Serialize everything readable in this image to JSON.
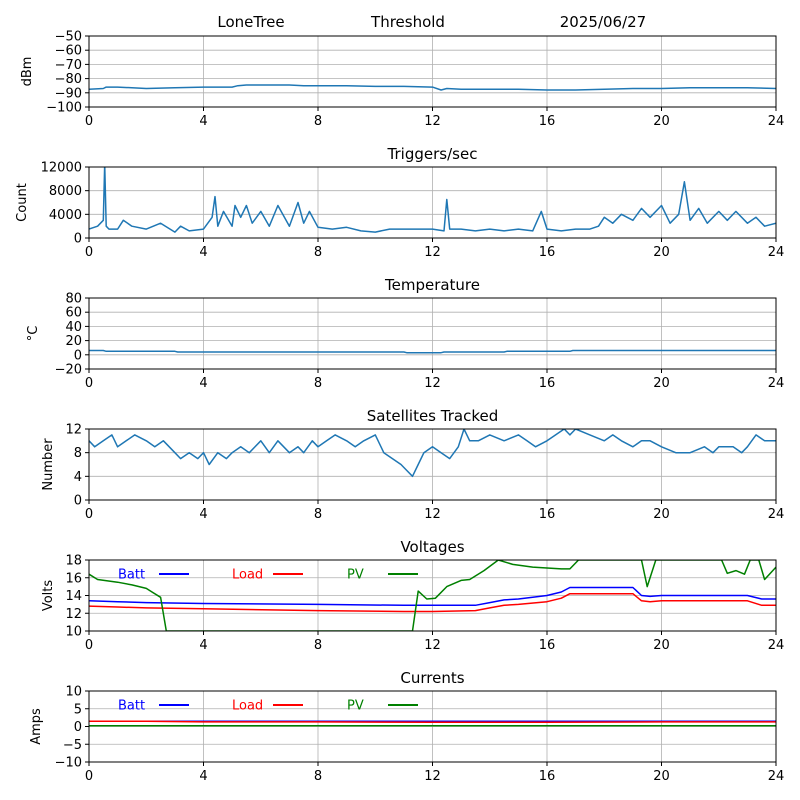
{
  "header": {
    "station": "LoneTree",
    "mode": "Threshold",
    "date": "2025/06/27"
  },
  "chart_data": [
    {
      "id": "signal",
      "type": "line",
      "title": "",
      "xlabel": "",
      "ylabel": "dBm",
      "xlim": [
        0,
        24
      ],
      "ylim": [
        -100,
        -50
      ],
      "xticks": [
        0,
        4,
        8,
        12,
        16,
        20,
        24
      ],
      "yticks": [
        -100,
        -90,
        -80,
        -70,
        -60,
        -50
      ],
      "grid": true,
      "series": [
        {
          "color": "#1f77b4",
          "x": [
            0,
            0.5,
            0.6,
            1,
            2,
            3,
            4,
            5,
            5.2,
            5.5,
            6,
            7,
            7.5,
            8,
            9,
            10,
            11,
            12,
            12.3,
            12.5,
            13,
            14,
            15,
            16,
            17,
            18,
            19,
            20,
            21,
            22,
            23,
            24
          ],
          "y": [
            -87.5,
            -87,
            -86,
            -86,
            -87,
            -86.5,
            -86,
            -86,
            -85,
            -84.5,
            -84.5,
            -84.5,
            -85,
            -85,
            -85,
            -85.5,
            -85.5,
            -86,
            -88,
            -87,
            -87.5,
            -87.5,
            -87.5,
            -88,
            -88,
            -87.5,
            -87,
            -87,
            -86.5,
            -86.5,
            -86.5,
            -87
          ]
        }
      ]
    },
    {
      "id": "triggers",
      "type": "line",
      "title": "Triggers/sec",
      "xlabel": "",
      "ylabel": "Count",
      "xlim": [
        0,
        24
      ],
      "ylim": [
        0,
        12000
      ],
      "xticks": [
        0,
        4,
        8,
        12,
        16,
        20,
        24
      ],
      "yticks": [
        0,
        4000,
        8000,
        12000
      ],
      "grid": true,
      "series": [
        {
          "color": "#1f77b4",
          "x": [
            0,
            0.3,
            0.5,
            0.55,
            0.6,
            0.7,
            1,
            1.2,
            1.5,
            2,
            2.5,
            3,
            3.2,
            3.5,
            4,
            4.3,
            4.4,
            4.5,
            4.7,
            5,
            5.1,
            5.3,
            5.5,
            5.7,
            6,
            6.3,
            6.6,
            7,
            7.3,
            7.5,
            7.7,
            8,
            8.5,
            9,
            9.5,
            10,
            10.5,
            11,
            11.5,
            12,
            12.4,
            12.5,
            12.6,
            13,
            13.5,
            14,
            14.5,
            15,
            15.5,
            15.8,
            16,
            16.5,
            17,
            17.5,
            17.8,
            18,
            18.3,
            18.6,
            19,
            19.3,
            19.6,
            20,
            20.3,
            20.6,
            20.8,
            21,
            21.3,
            21.6,
            22,
            22.3,
            22.6,
            23,
            23.3,
            23.6,
            24
          ],
          "y": [
            1500,
            2000,
            3000,
            12500,
            2000,
            1500,
            1500,
            3000,
            2000,
            1500,
            2500,
            1000,
            2000,
            1200,
            1500,
            3500,
            7000,
            2000,
            4500,
            2000,
            5500,
            3500,
            5500,
            2500,
            4500,
            2000,
            5500,
            2000,
            6000,
            2500,
            4500,
            1800,
            1500,
            1800,
            1200,
            1000,
            1500,
            1500,
            1500,
            1500,
            1200,
            6500,
            1500,
            1500,
            1200,
            1500,
            1200,
            1500,
            1200,
            4500,
            1500,
            1200,
            1500,
            1500,
            2000,
            3500,
            2500,
            4000,
            3000,
            5000,
            3500,
            5500,
            2500,
            4000,
            9500,
            3000,
            5000,
            2500,
            4500,
            3000,
            4500,
            2500,
            3500,
            2000,
            2500
          ]
        }
      ]
    },
    {
      "id": "temperature",
      "type": "line",
      "title": "Temperature",
      "xlabel": "",
      "ylabel": "°C",
      "xlim": [
        0,
        24
      ],
      "ylim": [
        -20,
        80
      ],
      "xticks": [
        0,
        4,
        8,
        12,
        16,
        20,
        24
      ],
      "yticks": [
        -20,
        0,
        20,
        40,
        60,
        80
      ],
      "grid": true,
      "series": [
        {
          "color": "#1f77b4",
          "x": [
            0,
            0.5,
            0.6,
            3,
            3.1,
            11,
            11.1,
            12.3,
            12.4,
            14.5,
            14.6,
            16.8,
            16.9,
            24
          ],
          "y": [
            6,
            6,
            5,
            5,
            4,
            4,
            3,
            3,
            4,
            4,
            5,
            5,
            6,
            6
          ]
        }
      ]
    },
    {
      "id": "satellites",
      "type": "line",
      "title": "Satellites Tracked",
      "xlabel": "",
      "ylabel": "Number",
      "xlim": [
        0,
        24
      ],
      "ylim": [
        0,
        12
      ],
      "xticks": [
        0,
        4,
        8,
        12,
        16,
        20,
        24
      ],
      "yticks": [
        0,
        4,
        8,
        12
      ],
      "grid": true,
      "series": [
        {
          "color": "#1f77b4",
          "x": [
            0,
            0.2,
            0.5,
            0.8,
            1,
            1.3,
            1.6,
            2,
            2.3,
            2.6,
            3,
            3.2,
            3.5,
            3.8,
            4,
            4.2,
            4.5,
            4.8,
            5,
            5.3,
            5.6,
            6,
            6.3,
            6.6,
            7,
            7.3,
            7.5,
            7.8,
            8,
            8.3,
            8.6,
            9,
            9.3,
            9.6,
            10,
            10.3,
            10.6,
            10.9,
            11.1,
            11.3,
            11.5,
            11.7,
            12,
            12.3,
            12.6,
            12.9,
            13.1,
            13.3,
            13.6,
            14,
            14.5,
            15,
            15.3,
            15.6,
            16,
            16.3,
            16.6,
            16.8,
            17,
            17.5,
            18,
            18.3,
            18.6,
            19,
            19.3,
            19.6,
            20,
            20.5,
            21,
            21.5,
            21.8,
            22,
            22.5,
            22.8,
            23,
            23.3,
            23.6,
            24
          ],
          "y": [
            10,
            9,
            10,
            11,
            9,
            10,
            11,
            10,
            9,
            10,
            8,
            7,
            8,
            7,
            8,
            6,
            8,
            7,
            8,
            9,
            8,
            10,
            8,
            10,
            8,
            9,
            8,
            10,
            9,
            10,
            11,
            10,
            9,
            10,
            11,
            8,
            7,
            6,
            5,
            4,
            6,
            8,
            9,
            8,
            7,
            9,
            12,
            10,
            10,
            11,
            10,
            11,
            10,
            9,
            10,
            11,
            12,
            11,
            12,
            11,
            10,
            11,
            10,
            9,
            10,
            10,
            9,
            8,
            8,
            9,
            8,
            9,
            9,
            8,
            9,
            11,
            10,
            10
          ]
        }
      ]
    },
    {
      "id": "voltages",
      "type": "line",
      "title": "Voltages",
      "xlabel": "",
      "ylabel": "Volts",
      "xlim": [
        0,
        24
      ],
      "ylim": [
        10,
        18
      ],
      "xticks": [
        0,
        4,
        8,
        12,
        16,
        20,
        24
      ],
      "yticks": [
        10,
        12,
        14,
        16,
        18
      ],
      "grid": true,
      "legend": "top-left",
      "series": [
        {
          "name": "Batt",
          "color": "#0000ff",
          "x": [
            0,
            1,
            2,
            4,
            8,
            11,
            12,
            13.5,
            14,
            14.5,
            15,
            16,
            16.5,
            16.8,
            17.5,
            18,
            19,
            19.3,
            19.6,
            20,
            21,
            22,
            23,
            23.5,
            24
          ],
          "y": [
            13.4,
            13.3,
            13.2,
            13.1,
            13.0,
            12.9,
            12.9,
            12.9,
            13.2,
            13.5,
            13.6,
            14.0,
            14.4,
            14.9,
            14.9,
            14.9,
            14.9,
            14.0,
            13.9,
            14.0,
            14.0,
            14.0,
            14.0,
            13.6,
            13.6
          ]
        },
        {
          "name": "Load",
          "color": "#ff0000",
          "x": [
            0,
            1,
            2,
            4,
            8,
            11,
            12,
            13.5,
            14,
            14.5,
            15,
            16,
            16.5,
            16.8,
            17.5,
            18,
            19,
            19.3,
            19.6,
            20,
            21,
            22,
            23,
            23.5,
            24
          ],
          "y": [
            12.8,
            12.7,
            12.6,
            12.5,
            12.3,
            12.2,
            12.2,
            12.3,
            12.6,
            12.9,
            13.0,
            13.3,
            13.7,
            14.2,
            14.2,
            14.2,
            14.2,
            13.4,
            13.3,
            13.4,
            13.4,
            13.4,
            13.4,
            12.9,
            12.9
          ]
        },
        {
          "name": "PV",
          "color": "#008000",
          "x": [
            0,
            0.3,
            1,
            1.5,
            2,
            2.2,
            2.5,
            2.7,
            11.3,
            11.5,
            11.8,
            12.1,
            12.5,
            13,
            13.3,
            13.8,
            14.3,
            14.8,
            15.5,
            16.5,
            16.8,
            17.1,
            19.3,
            19.5,
            19.8,
            22.1,
            22.3,
            22.6,
            22.9,
            23.1,
            23.4,
            23.6,
            24
          ],
          "y": [
            16.4,
            15.8,
            15.5,
            15.2,
            14.8,
            14.4,
            13.8,
            10.0,
            10.0,
            14.5,
            13.6,
            13.7,
            15.0,
            15.7,
            15.8,
            16.8,
            18.0,
            17.5,
            17.2,
            17.0,
            17.0,
            18.0,
            18.0,
            15.0,
            18.0,
            18.0,
            16.5,
            16.8,
            16.4,
            18.0,
            18.0,
            15.8,
            17.2
          ]
        }
      ]
    },
    {
      "id": "currents",
      "type": "line",
      "title": "Currents",
      "xlabel": "",
      "ylabel": "Amps",
      "xlim": [
        0,
        24
      ],
      "ylim": [
        -10,
        10
      ],
      "xticks": [
        0,
        4,
        8,
        12,
        16,
        20,
        24
      ],
      "yticks": [
        -10,
        -5,
        0,
        5,
        10
      ],
      "grid": true,
      "legend": "top-left",
      "series": [
        {
          "name": "Batt",
          "color": "#0000ff",
          "x": [
            0,
            24
          ],
          "y": [
            1.5,
            1.5
          ]
        },
        {
          "name": "Load",
          "color": "#ff0000",
          "x": [
            0,
            2,
            4,
            8,
            12,
            16,
            20,
            24
          ],
          "y": [
            1.5,
            1.5,
            1.3,
            1.3,
            1.2,
            1.2,
            1.3,
            1.3
          ]
        },
        {
          "name": "PV",
          "color": "#008000",
          "x": [
            0,
            24
          ],
          "y": [
            0.2,
            0.2
          ]
        }
      ]
    }
  ]
}
